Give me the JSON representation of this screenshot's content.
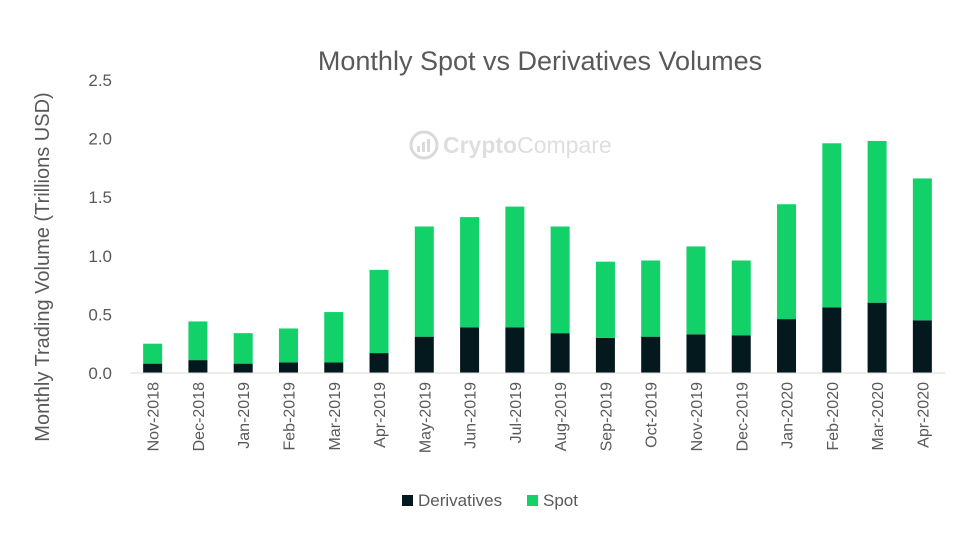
{
  "watermark": {
    "brand_part1": "Crypto",
    "brand_part2": "Compare"
  },
  "chart_data": {
    "type": "bar",
    "stacked": true,
    "title": "Monthly Spot vs Derivatives Volumes",
    "xlabel": "",
    "ylabel": "Monthly Trading Volume (Trillions USD)",
    "ylim": [
      0,
      2.5
    ],
    "yticks": [
      "0.0",
      "0.5",
      "1.0",
      "1.5",
      "2.0",
      "2.5"
    ],
    "grid": false,
    "legend_position": "bottom",
    "categories": [
      "Nov-2018",
      "Dec-2018",
      "Jan-2019",
      "Feb-2019",
      "Mar-2019",
      "Apr-2019",
      "May-2019",
      "Jun-2019",
      "Jul-2019",
      "Aug-2019",
      "Sep-2019",
      "Oct-2019",
      "Nov-2019",
      "Dec-2019",
      "Jan-2020",
      "Feb-2020",
      "Mar-2020",
      "Apr-2020"
    ],
    "series": [
      {
        "name": "Derivatives",
        "color": "#04191e",
        "values": [
          0.08,
          0.11,
          0.08,
          0.09,
          0.09,
          0.17,
          0.31,
          0.39,
          0.39,
          0.34,
          0.3,
          0.31,
          0.33,
          0.32,
          0.46,
          0.56,
          0.6,
          0.45
        ]
      },
      {
        "name": "Spot",
        "color": "#11d168",
        "values": [
          0.17,
          0.33,
          0.26,
          0.29,
          0.43,
          0.71,
          0.94,
          0.94,
          1.03,
          0.91,
          0.65,
          0.65,
          0.75,
          0.64,
          0.98,
          1.4,
          1.38,
          1.21
        ]
      }
    ]
  }
}
